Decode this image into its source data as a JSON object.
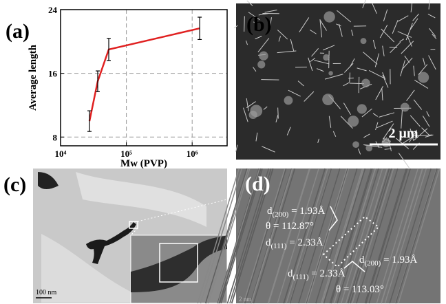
{
  "chart_data": {
    "type": "line",
    "xlabel": "Mw (PVP)",
    "ylabel": "Average length",
    "x": [
      27500,
      36700,
      54000,
      1300000
    ],
    "series": [
      {
        "color": "#e02020",
        "values": [
          10.0,
          15.0,
          19.0,
          21.65
        ],
        "errors": [
          1.3,
          1.3,
          1.4,
          1.4
        ]
      }
    ],
    "xscale": "log",
    "xlim": [
      10000,
      3400000
    ],
    "xticks": [
      {
        "value": 10000,
        "label": "10⁴"
      },
      {
        "value": 100000,
        "label": "10⁵"
      },
      {
        "value": 1000000,
        "label": "10⁶"
      }
    ],
    "ylim": [
      6.9,
      24
    ],
    "yticks": [
      8,
      16,
      24
    ],
    "grid": true
  },
  "panels": {
    "a": "(a)",
    "b": "(b)",
    "c": "(c)",
    "d": "(d)"
  },
  "scale_bars": {
    "b": "2 μm",
    "c": "100 nm",
    "d": "2 nm"
  },
  "annotations": [
    {
      "symbol": "d",
      "subscript": "(200)",
      "value": " = 1.93Å"
    },
    {
      "symbol": "θ = 112.87°"
    },
    {
      "symbol": "d",
      "subscript": "(111)",
      "value": " = 2.33Å"
    },
    {
      "symbol": "d",
      "subscript": "(111)",
      "value": " = 2.33Å"
    },
    {
      "symbol": "d",
      "subscript": "(200)",
      "value": " = 1.93Å"
    },
    {
      "symbol": "θ = 113.03°"
    }
  ]
}
